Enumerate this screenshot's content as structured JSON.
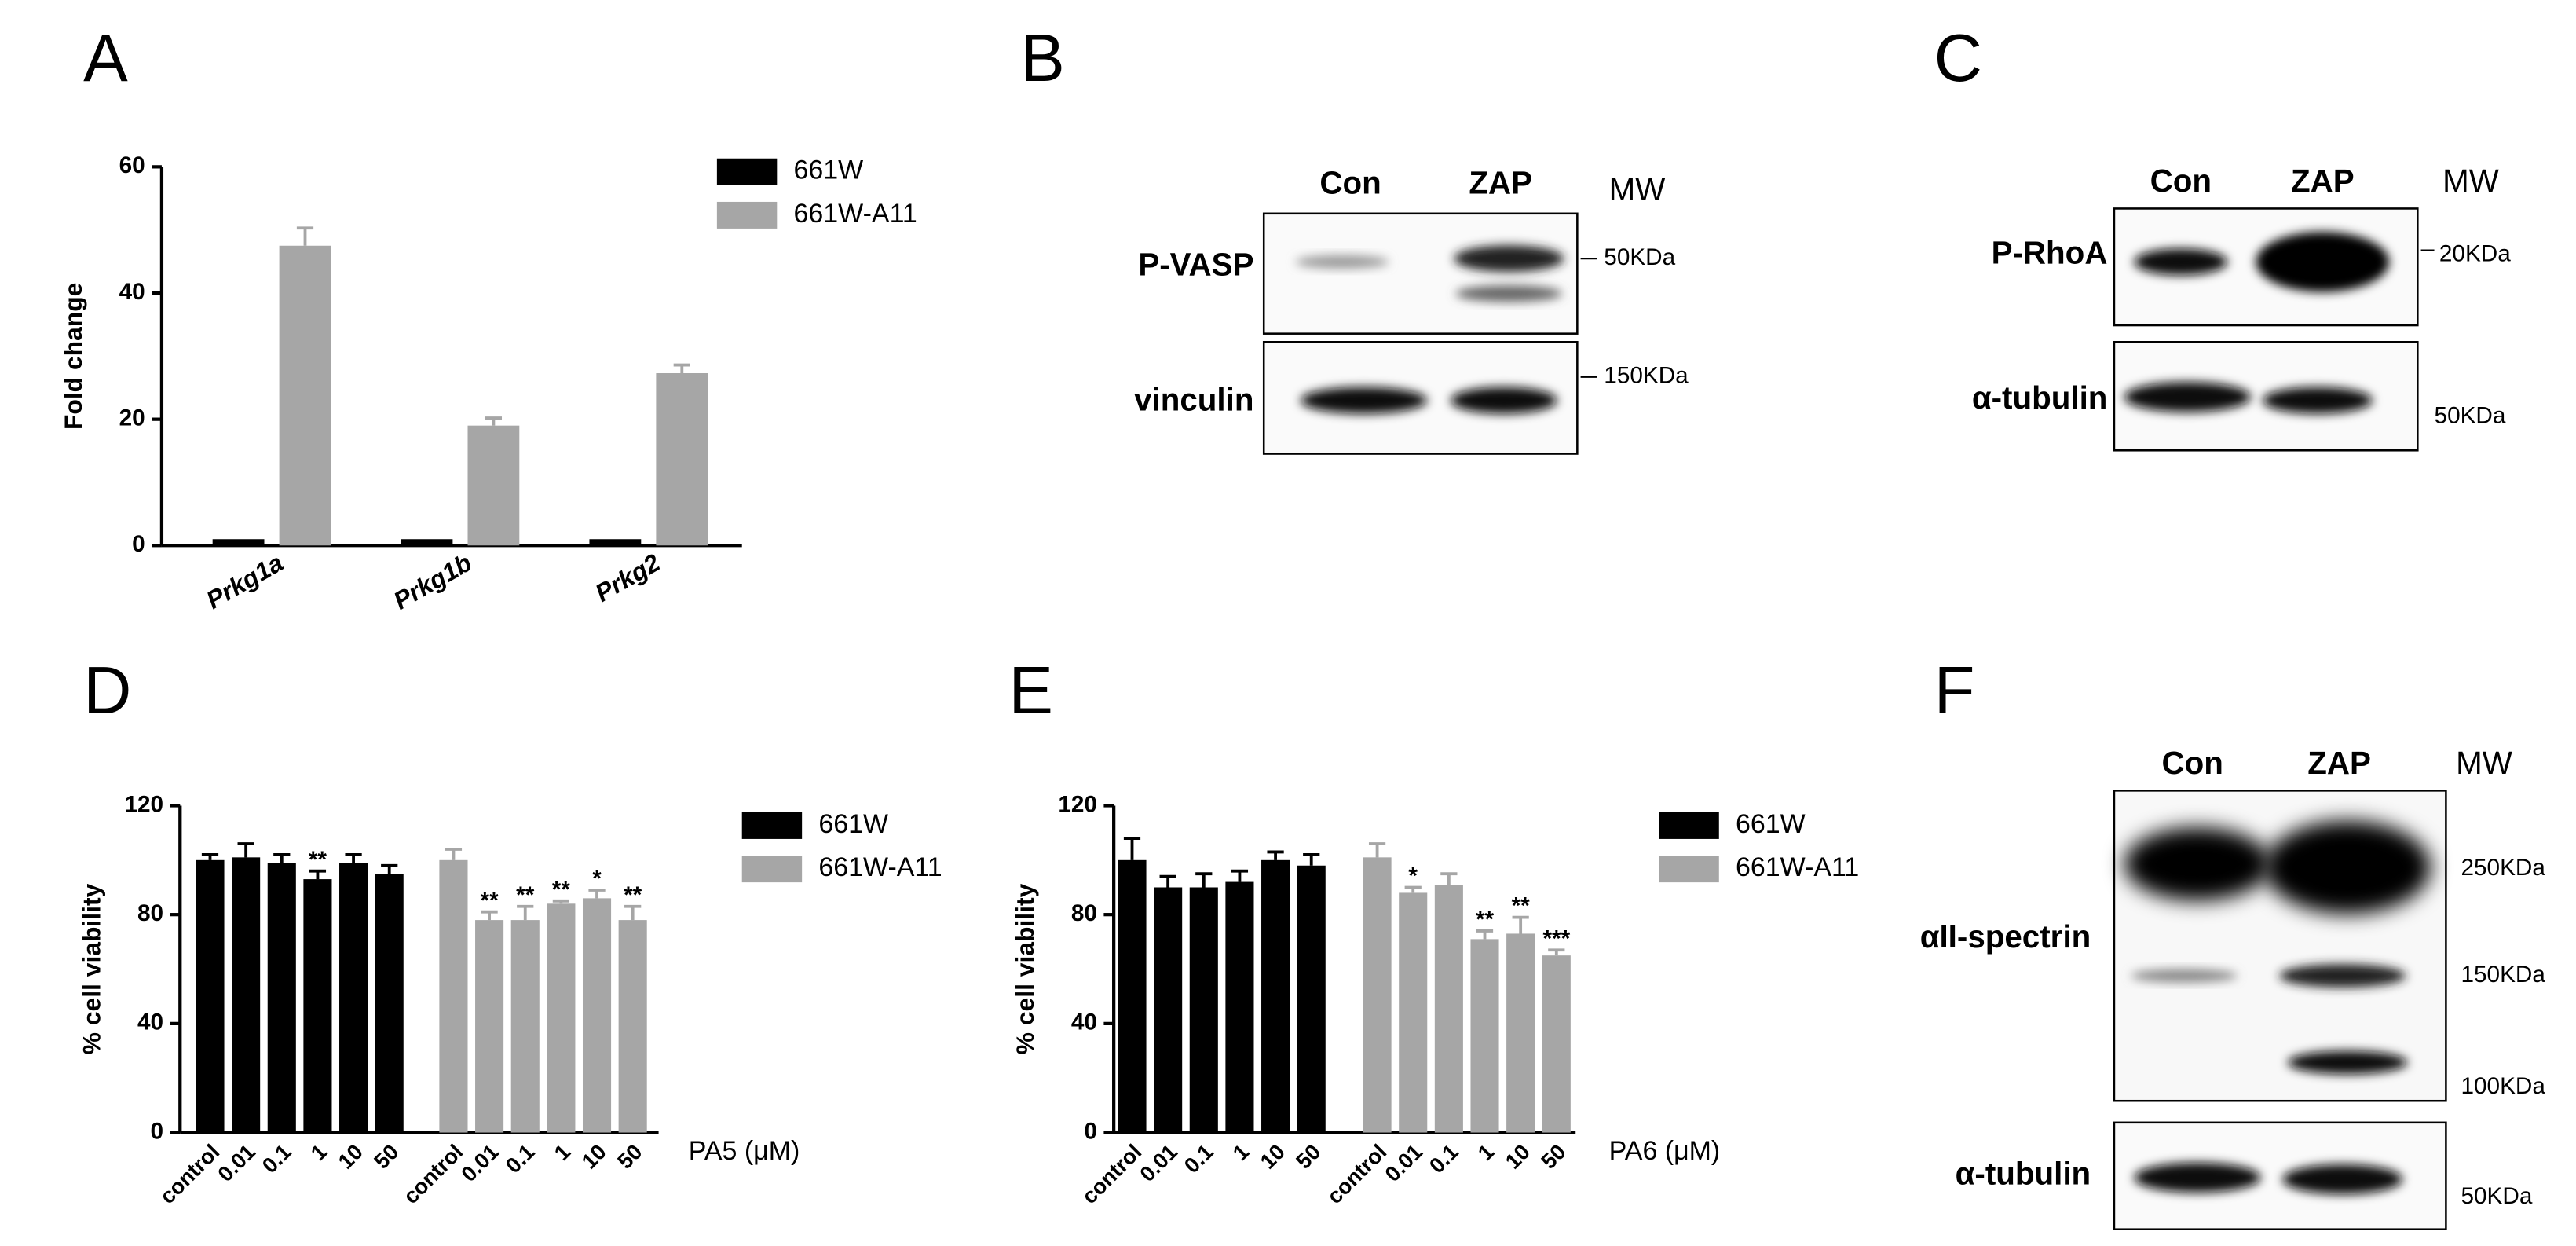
{
  "chart_data": [
    {
      "type": "bar",
      "panel_label": "A",
      "y_label": "Fold change",
      "categories": [
        "Prkg1a",
        "Prkg1b",
        "Prkg2"
      ],
      "series": [
        {
          "name": "661W",
          "color": "#000000",
          "values": [
            1,
            1,
            1
          ]
        },
        {
          "name": "661W-A11",
          "color": "#a6a6a6",
          "values": [
            47.5,
            19,
            27.3
          ],
          "errors": [
            2.8,
            1.2,
            1.3
          ]
        }
      ],
      "ylim": [
        0,
        60
      ],
      "yticks": [
        0,
        20,
        40,
        60
      ]
    },
    {
      "type": "bar",
      "panel_label": "D",
      "y_label": "% cell viability",
      "x_label": "PA5 (μM)",
      "categories": [
        "control",
        "0.01",
        "0.1",
        "1",
        "10",
        "50"
      ],
      "series": [
        {
          "name": "661W",
          "color": "#000000",
          "values": [
            100,
            101,
            99,
            93,
            99,
            95
          ],
          "errors": [
            2,
            5,
            3,
            3,
            3,
            3
          ],
          "significance": [
            null,
            null,
            null,
            "**",
            null,
            null
          ]
        },
        {
          "name": "661W-A11",
          "color": "#a6a6a6",
          "values": [
            100,
            78,
            78,
            84,
            86,
            78
          ],
          "errors": [
            4,
            3,
            5,
            1,
            3,
            5
          ],
          "significance": [
            null,
            "**",
            "**",
            "**",
            "*",
            "**"
          ]
        }
      ],
      "ylim": [
        0,
        120
      ],
      "yticks": [
        0,
        40,
        80,
        120
      ]
    },
    {
      "type": "bar",
      "panel_label": "E",
      "y_label": "% cell viability",
      "x_label": "PA6 (μM)",
      "categories": [
        "control",
        "0.01",
        "0.1",
        "1",
        "10",
        "50"
      ],
      "series": [
        {
          "name": "661W",
          "color": "#000000",
          "values": [
            100,
            90,
            90,
            92,
            100,
            98
          ],
          "errors": [
            8,
            4,
            5,
            4,
            3,
            4
          ]
        },
        {
          "name": "661W-A11",
          "color": "#a6a6a6",
          "values": [
            101,
            88,
            91,
            71,
            73,
            65
          ],
          "errors": [
            5,
            2,
            4,
            3,
            6,
            2
          ],
          "significance": [
            null,
            "*",
            null,
            "**",
            "**",
            "***"
          ]
        }
      ],
      "ylim": [
        0,
        120
      ],
      "yticks": [
        0,
        40,
        80,
        120
      ]
    }
  ],
  "blots": [
    {
      "panel_label": "B",
      "lanes": [
        "Con",
        "ZAP"
      ],
      "mw_header": "MW",
      "rows": [
        "P-VASP",
        "vinculin"
      ],
      "markers": [
        "50KDa",
        "150KDa"
      ]
    },
    {
      "panel_label": "C",
      "lanes": [
        "Con",
        "ZAP"
      ],
      "mw_header": "MW",
      "rows": [
        "P-RhoA",
        "α-tubulin"
      ],
      "markers": [
        "20KDa",
        "50KDa"
      ]
    },
    {
      "panel_label": "F",
      "lanes": [
        "Con",
        "ZAP"
      ],
      "mw_header": "MW",
      "rows": [
        "αII-spectrin",
        "α-tubulin"
      ],
      "markers": [
        "250KDa",
        "150KDa",
        "100KDa",
        "50KDa"
      ]
    }
  ]
}
